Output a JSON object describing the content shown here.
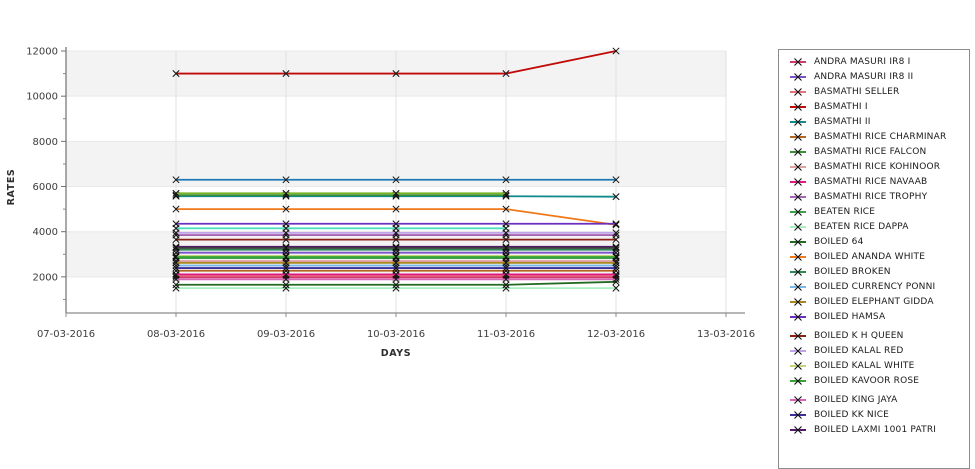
{
  "chart_data": {
    "type": "line",
    "title": "",
    "xlabel": "DAYS",
    "ylabel": "RATES",
    "x_tick_labels": [
      "07-03-2016",
      "08-03-2016",
      "09-03-2016",
      "10-03-2016",
      "11-03-2016",
      "12-03-2016",
      "13-03-2016"
    ],
    "y_ticks": [
      2000,
      4000,
      6000,
      8000,
      10000,
      12000
    ],
    "y_tick_labels": [
      "2000",
      "4000",
      "6000",
      "8000",
      "10000",
      "12000"
    ],
    "y_minor_ticks": [
      1000,
      3000,
      5000,
      7000,
      9000,
      11000
    ],
    "ylim": [
      400,
      12000
    ],
    "grid": true,
    "plot_band_ranges": [
      [
        2000,
        4000
      ],
      [
        6000,
        8000
      ],
      [
        10000,
        12000
      ]
    ],
    "legend_position": "right",
    "marker_style": "x",
    "colors": {
      "band": "#f3f3f3",
      "grid_vertical": "#e0e0e0",
      "grid_horizontal": "#e9e9e9",
      "axis": "#8c8c8c",
      "tick_text": "#3c3c3c",
      "marker": "#111111",
      "legend_border": "#8c8c8c",
      "legend_text": "#1a1a1a"
    },
    "series_days": [
      "08-03-2016",
      "09-03-2016",
      "10-03-2016",
      "11-03-2016",
      "12-03-2016"
    ],
    "series": [
      {
        "name": "ANDRA MASURI IR8 I",
        "color": "#cf3a68",
        "in_legend": true,
        "values": [
          1980,
          1980,
          1980,
          1980,
          1980
        ]
      },
      {
        "name": "ANDRA MASURI IR8 II",
        "color": "#7a52cc",
        "in_legend": true,
        "values": [
          3070,
          3070,
          3070,
          3070,
          3070
        ]
      },
      {
        "name": "BASMATHI  SELLER",
        "color": "#e8707e",
        "in_legend": true,
        "values": [
          2050,
          2050,
          2050,
          2050,
          2050
        ]
      },
      {
        "name": "BASMATHI I",
        "color": "#c00a0a",
        "in_legend": true,
        "values": [
          11000,
          11000,
          11000,
          11000,
          12000
        ]
      },
      {
        "name": "BASMATHI II",
        "color": "#108a8a",
        "in_legend": true,
        "values": [
          5570,
          5570,
          5570,
          5570,
          5550
        ]
      },
      {
        "name": "BASMATHI RICE CHARMINAR",
        "color": "#b5651d",
        "in_legend": true,
        "values": [
          2270,
          2270,
          2270,
          2270,
          2270
        ]
      },
      {
        "name": "BASMATHI RICE FALCON",
        "color": "#3a8e3a",
        "in_legend": true,
        "values": [
          5620,
          5620,
          5620,
          5620,
          null
        ]
      },
      {
        "name": "BASMATHI RICE KOHINOOR",
        "color": "#dfa0a0",
        "in_legend": true,
        "values": [
          2700,
          2700,
          2700,
          2700,
          2700
        ]
      },
      {
        "name": "BASMATHI RICE NAVAAB",
        "color": "#e01884",
        "in_legend": true,
        "values": [
          2110,
          2110,
          2110,
          2110,
          2110
        ]
      },
      {
        "name": "BASMATHI RICE TROPHY",
        "color": "#a665b5",
        "in_legend": true,
        "values": [
          3850,
          3850,
          3850,
          3850,
          3850
        ]
      },
      {
        "name": "BEATEN RICE",
        "color": "#3ca048",
        "in_legend": true,
        "values": [
          2830,
          2830,
          2830,
          2830,
          2830
        ]
      },
      {
        "name": "BEATEN RICE DAPPA",
        "color": "#a8f0c0",
        "in_legend": true,
        "values": [
          1500,
          1500,
          1500,
          1500,
          1500
        ]
      },
      {
        "name": "BOILED 64",
        "color": "#216b21",
        "in_legend": true,
        "values": [
          1650,
          1650,
          1650,
          1650,
          1780
        ]
      },
      {
        "name": "BOILED ANANDA WHITE",
        "color": "#f07818",
        "in_legend": true,
        "values": [
          5000,
          5000,
          5000,
          5000,
          4300
        ]
      },
      {
        "name": "BOILED BROKEN",
        "color": "#2d8a57",
        "in_legend": true,
        "values": [
          3200,
          3200,
          3200,
          3200,
          3200
        ]
      },
      {
        "name": "BOILED CURRENCY PONNI",
        "color": "#79bae8",
        "in_legend": true,
        "values": [
          2500,
          2500,
          2500,
          2500,
          2500
        ]
      },
      {
        "name": "BOILED ELEPHANT GIDDA",
        "color": "#a8871e",
        "in_legend": true,
        "values": [
          2620,
          2620,
          2620,
          2620,
          2620
        ]
      },
      {
        "name": "BOILED HAMSA",
        "color": "#6a2fc0",
        "in_legend": true,
        "values": [
          4350,
          4350,
          4350,
          4350,
          4350
        ]
      },
      {
        "name": "BOILED K H QUEEN",
        "color": "#8c2014",
        "in_legend": true,
        "gap_before": true,
        "values": [
          3650,
          3650,
          3650,
          3650,
          3650
        ]
      },
      {
        "name": "BOILED KALAL RED",
        "color": "#bfa3e8",
        "in_legend": true,
        "values": [
          3950,
          3950,
          3950,
          3950,
          3950
        ]
      },
      {
        "name": "BOILED KALAL WHITE",
        "color": "#c3d67a",
        "in_legend": true,
        "values": [
          2930,
          2930,
          2930,
          2930,
          2930
        ]
      },
      {
        "name": "BOILED KAVOOR ROSE",
        "color": "#37a337",
        "in_legend": true,
        "values": [
          2880,
          2880,
          2880,
          2880,
          2880
        ]
      },
      {
        "name": "BOILED KING JAYA",
        "color": "#d667b8",
        "in_legend": true,
        "gap_before": true,
        "values": [
          1890,
          1890,
          1890,
          1890,
          1890
        ]
      },
      {
        "name": "BOILED KK NICE",
        "color": "#3a2e9e",
        "in_legend": true,
        "values": [
          2390,
          2390,
          2390,
          2390,
          2390
        ]
      },
      {
        "name": "BOILED LAXMI 1001 PATRI",
        "color": "#551a6e",
        "in_legend": true,
        "values": [
          3330,
          3330,
          3330,
          3330,
          3330
        ]
      },
      {
        "name": "",
        "color": "#1f77b4",
        "in_legend": false,
        "values": [
          6300,
          6300,
          6300,
          6300,
          6300
        ]
      },
      {
        "name": "",
        "color": "#7cb32b",
        "in_legend": false,
        "values": [
          5700,
          5700,
          5700,
          5700,
          null
        ]
      },
      {
        "name": "",
        "color": "#4ae0c0",
        "in_legend": false,
        "values": [
          4150,
          4150,
          4150,
          4150,
          null
        ]
      },
      {
        "name": "",
        "color": "#3c3c3c",
        "in_legend": false,
        "values": [
          3280,
          3280,
          3280,
          3280,
          3280
        ]
      }
    ]
  }
}
